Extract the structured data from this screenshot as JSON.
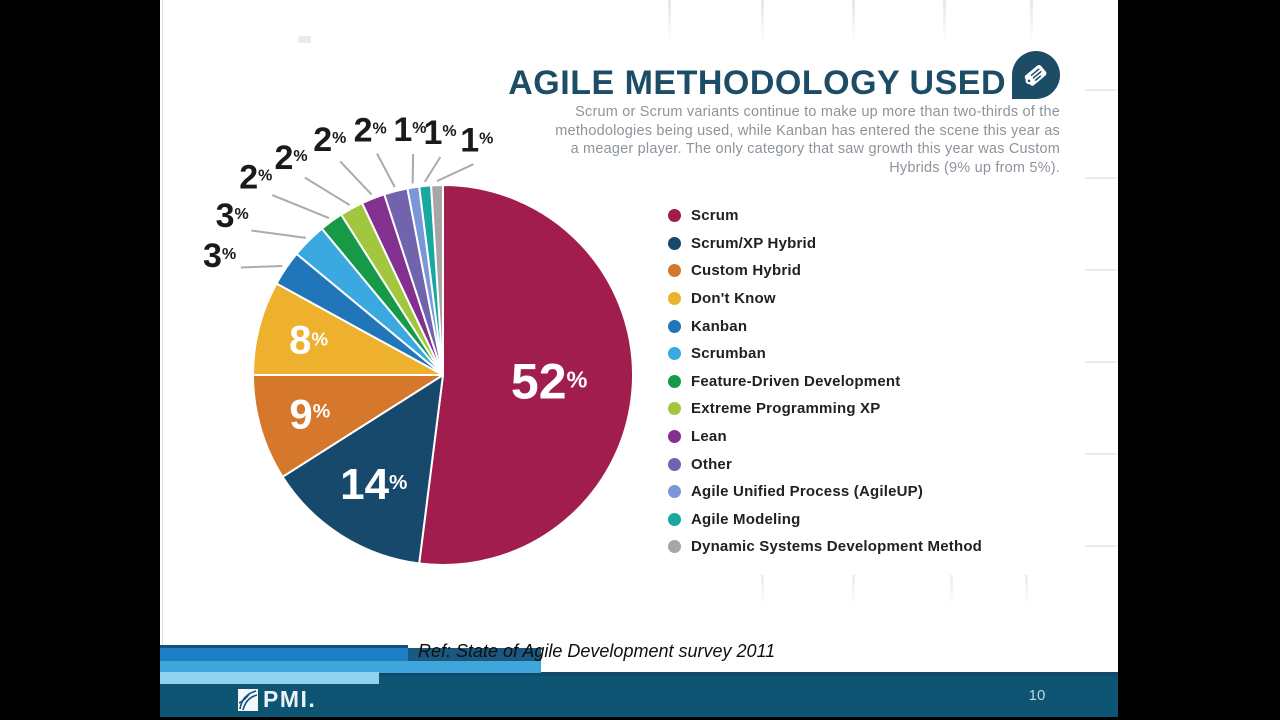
{
  "header": {
    "title": "AGILE METHODOLOGY USED",
    "icon": "scroll-badge-icon",
    "accent_color": "#1d4c67",
    "subtitle_lines": [
      "Scrum or Scrum variants continue to make up more than two-thirds of the",
      "methodologies being used, while Kanban has entered the scene this year as",
      "a meager player. The only category that saw growth this year was Custom",
      "Hybrids (9% up from 5%)."
    ]
  },
  "chart_data": {
    "type": "pie",
    "title": "Agile Methodology Used",
    "start_angle_deg": 0,
    "direction": "clockwise",
    "legend_position": "right",
    "value_suffix": "%",
    "slices": [
      {
        "label": "Scrum",
        "value": 52,
        "color": "#a01d4e"
      },
      {
        "label": "Scrum/XP Hybrid",
        "value": 14,
        "color": "#17496d"
      },
      {
        "label": "Custom Hybrid",
        "value": 9,
        "color": "#d5782b"
      },
      {
        "label": "Don't Know",
        "value": 8,
        "color": "#eeb12d"
      },
      {
        "label": "Kanban",
        "value": 3,
        "color": "#2076b8"
      },
      {
        "label": "Scrumban",
        "value": 3,
        "color": "#39a9e0"
      },
      {
        "label": "Feature-Driven Development",
        "value": 2,
        "color": "#169a47"
      },
      {
        "label": "Extreme Programming XP",
        "value": 2,
        "color": "#a2c63d"
      },
      {
        "label": "Lean",
        "value": 2,
        "color": "#84308f"
      },
      {
        "label": "Other",
        "value": 2,
        "color": "#7263ae"
      },
      {
        "label": "Agile Unified Process (AgileUP)",
        "value": 1,
        "color": "#7b97d9"
      },
      {
        "label": "Agile Modeling",
        "value": 1,
        "color": "#18a7a1"
      },
      {
        "label": "Dynamic Systems Development Method",
        "value": 1,
        "color": "#a7a5a6"
      }
    ]
  },
  "footer": {
    "ref_text": "Ref: State of Agile Development survey 2011",
    "logo_text": "PMI.",
    "page_number": "10"
  }
}
